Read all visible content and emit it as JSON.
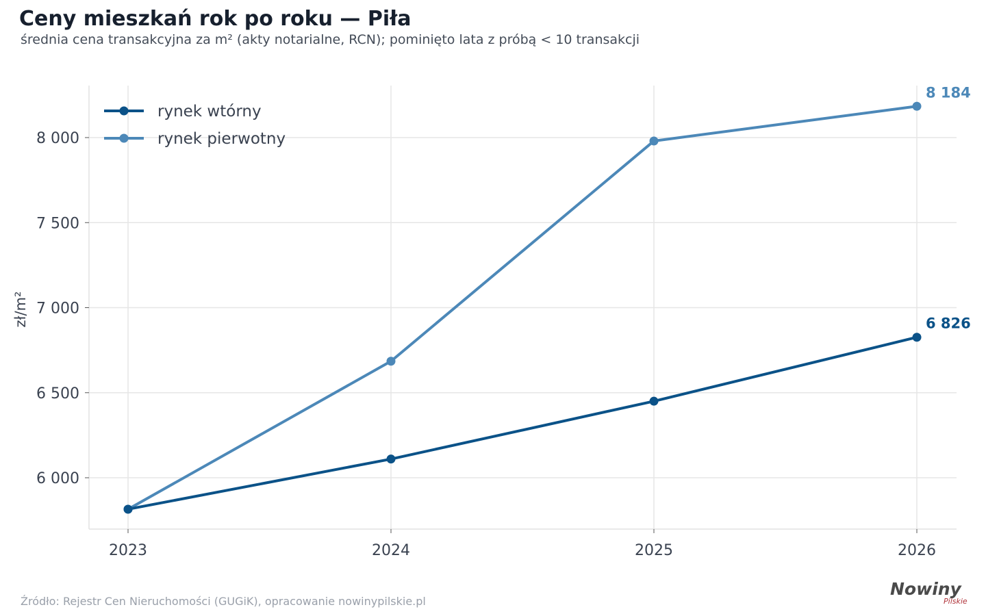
{
  "header": {
    "title": "Ceny mieszkań rok po roku — Piła",
    "subtitle": "średnia cena transakcyjna za m² (akty notarialne, RCN); pominięto lata z próbą < 10 transakcji"
  },
  "footer": {
    "source": "Źródło: Rejestr Cen Nieruchomości (GUGiK), opracowanie nowinypilskie.pl",
    "logo_main": "Nowiny",
    "logo_sub": "Pilskie"
  },
  "chart_data": {
    "type": "line",
    "title": "Ceny mieszkań rok po roku — Piła",
    "subtitle": "średnia cena transakcyjna za m² (akty notarialne, RCN); pominięto lata z próbą < 10 transakcji",
    "xlabel": "",
    "ylabel": "zł/m²",
    "x": [
      2023,
      2024,
      2025,
      2026
    ],
    "x_tick_labels": [
      "2023",
      "2024",
      "2025",
      "2026"
    ],
    "ylim": [
      5700,
      8300
    ],
    "y_ticks": [
      6000,
      6500,
      7000,
      7500,
      8000
    ],
    "y_tick_labels": [
      "6 000",
      "6 500",
      "7 000",
      "7 500",
      "8 000"
    ],
    "grid": true,
    "legend_position": "top-left",
    "series": [
      {
        "name": "rynek wtórny",
        "color": "#0b5288",
        "values": [
          5815,
          6110,
          6450,
          6826
        ],
        "end_label": "6 826"
      },
      {
        "name": "rynek pierwotny",
        "color": "#4c88b8",
        "values": [
          5815,
          6685,
          7980,
          8184
        ],
        "end_label": "8 184"
      }
    ]
  }
}
